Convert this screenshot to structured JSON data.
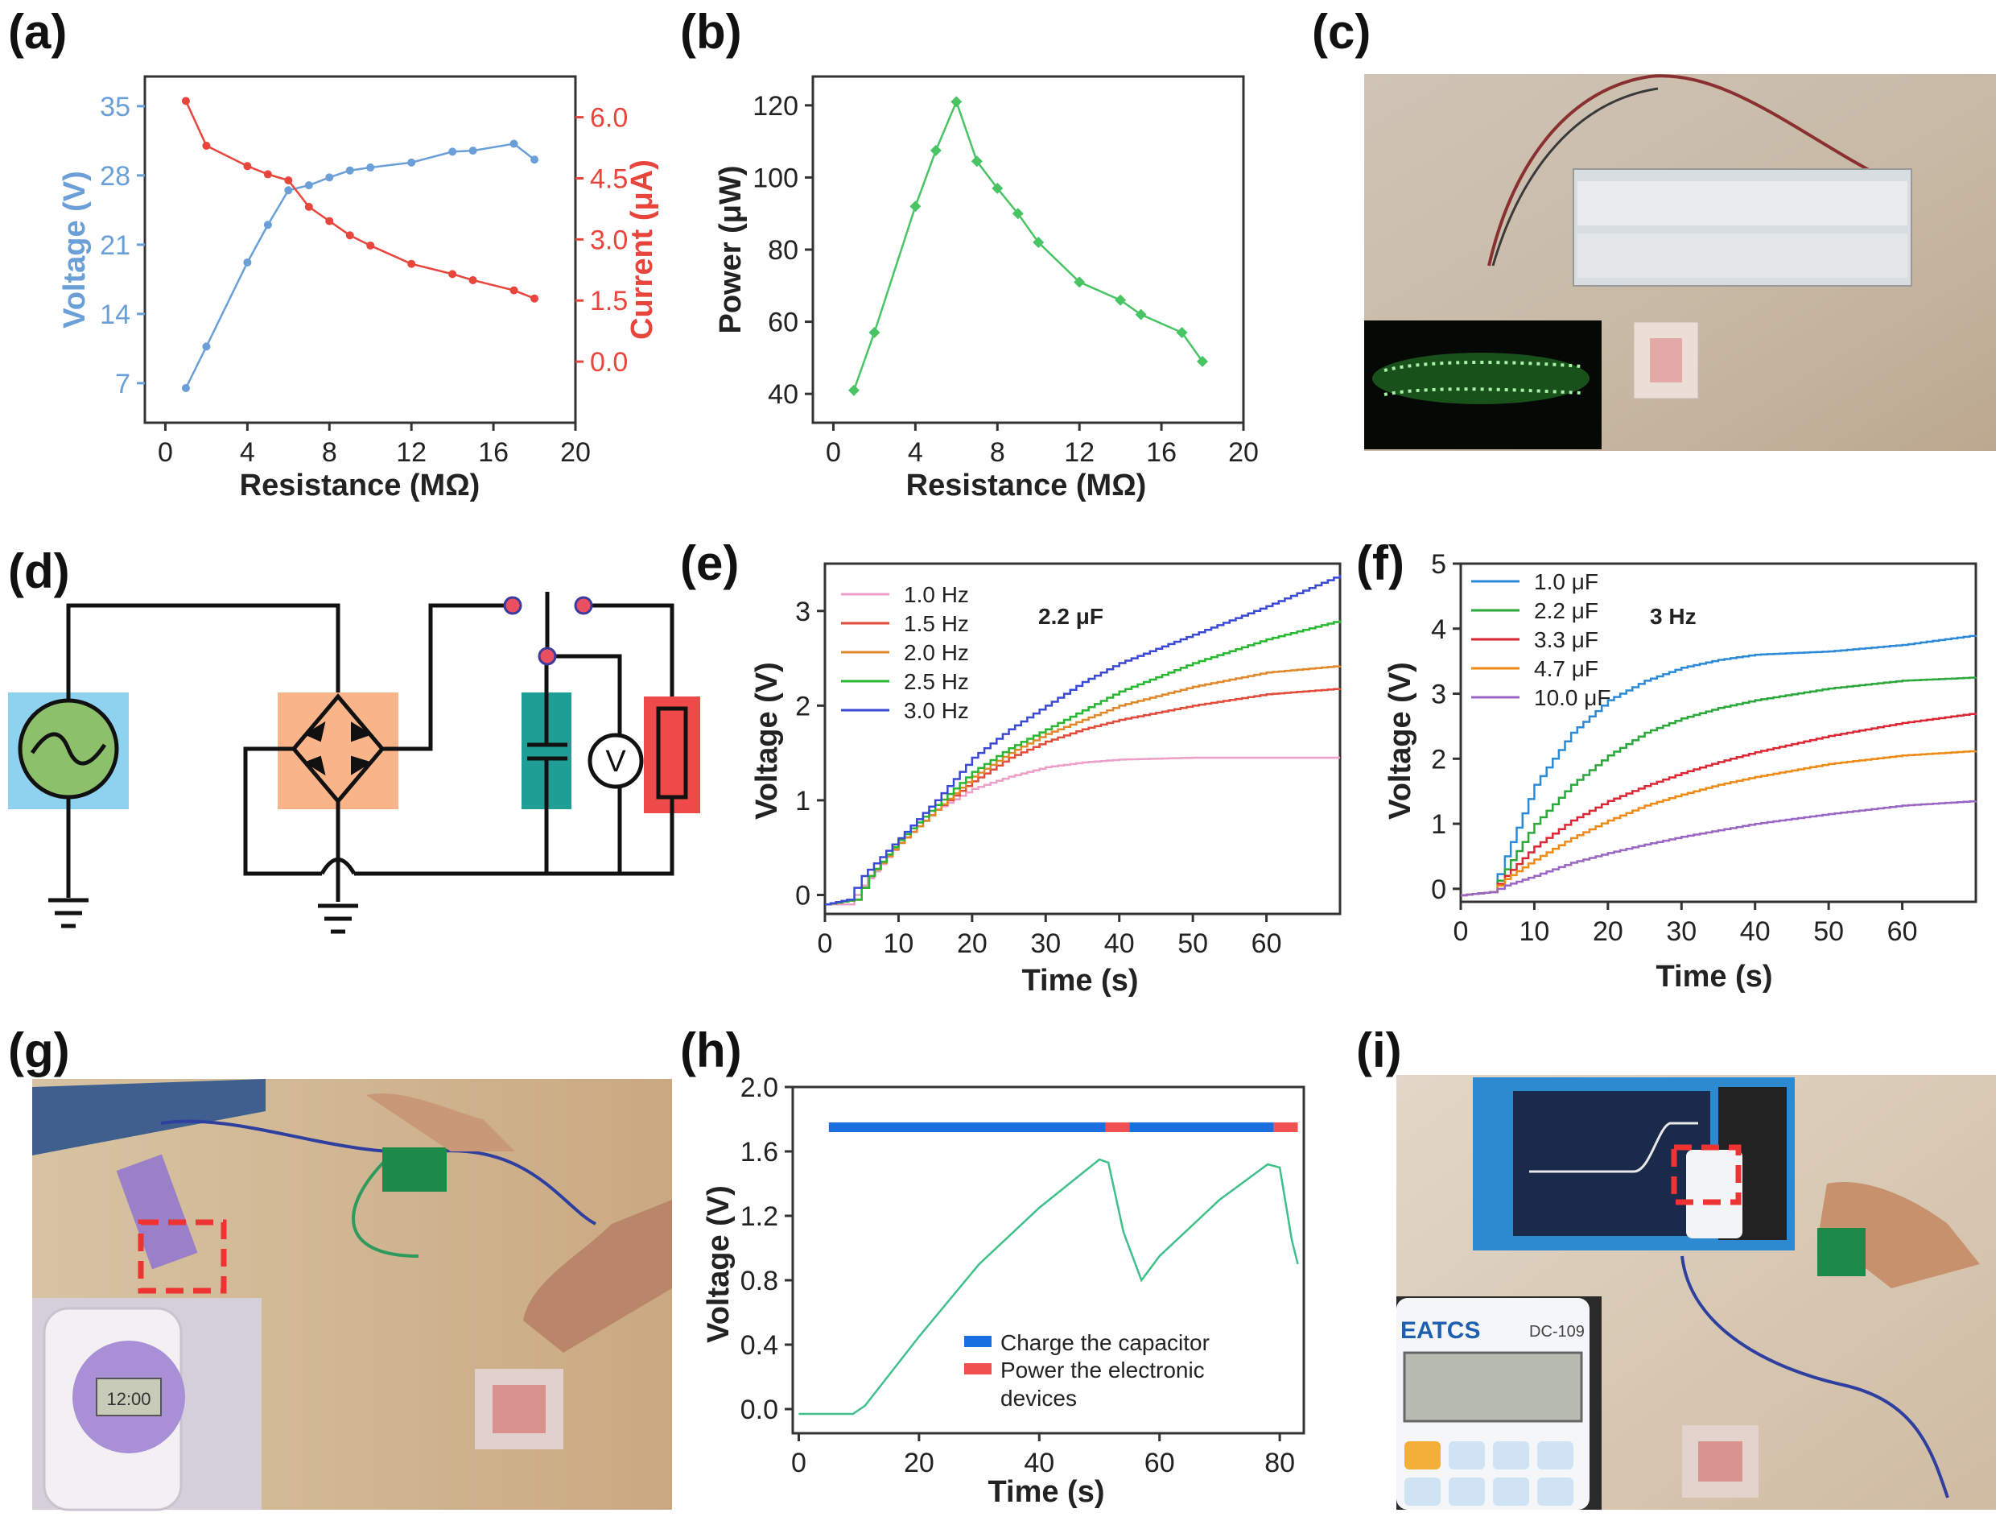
{
  "panel_labels": {
    "a": "(a)",
    "b": "(b)",
    "c": "(c)",
    "d": "(d)",
    "e": "(e)",
    "f": "(f)",
    "g": "(g)",
    "h": "(h)",
    "i": "(i)"
  },
  "circuit": {
    "voltmeter_symbol": "V"
  },
  "photo_g": {
    "watch_display": "12:00"
  },
  "photo_i": {
    "calculator_brand": "EATCS",
    "calculator_model": "DC-109"
  },
  "colors": {
    "blue": "#6a9fd8",
    "red": "#e8453c",
    "green": "#49c465",
    "series_e": [
      "#ee9fc8",
      "#e24a3a",
      "#e0882a",
      "#27b830",
      "#3a48d6"
    ],
    "series_f": [
      "#2b8ad8",
      "#2aa83a",
      "#dd2633",
      "#ef8a14",
      "#9a66c4"
    ],
    "charge": "#1a6fe0",
    "power": "#f05050"
  },
  "chart_data": [
    {
      "id": "a",
      "type": "line",
      "title": "",
      "xlabel": "Resistance (MΩ)",
      "ylabel": "Voltage (V)",
      "y2label": "Current (μA)",
      "xlim": [
        -1,
        20
      ],
      "ylim": [
        3,
        38
      ],
      "y2lim": [
        -1.5,
        7.0
      ],
      "xticks": [
        0,
        4,
        8,
        12,
        16,
        20
      ],
      "yticks": [
        7,
        14,
        21,
        28,
        35
      ],
      "y2ticks": [
        0.0,
        1.5,
        3.0,
        4.5,
        6.0
      ],
      "y2tick_labels": [
        "0.0",
        "1.5",
        "3.0",
        "4.5",
        "6.0"
      ],
      "x": [
        1,
        2,
        4,
        5,
        6,
        7,
        8,
        9,
        10,
        12,
        14,
        15,
        17,
        18
      ],
      "series": [
        {
          "name": "Voltage",
          "axis": "left",
          "values": [
            6.5,
            10.7,
            19.2,
            23.0,
            26.5,
            27.0,
            27.8,
            28.5,
            28.8,
            29.3,
            30.4,
            30.5,
            31.2,
            29.6
          ]
        },
        {
          "name": "Current",
          "axis": "right",
          "values": [
            6.4,
            5.3,
            4.8,
            4.6,
            4.45,
            3.8,
            3.45,
            3.1,
            2.85,
            2.4,
            2.15,
            2.0,
            1.75,
            1.55
          ]
        }
      ]
    },
    {
      "id": "b",
      "type": "line",
      "title": "",
      "xlabel": "Resistance (MΩ)",
      "ylabel": "Power (μW)",
      "xlim": [
        -1,
        20
      ],
      "ylim": [
        32,
        128
      ],
      "xticks": [
        0,
        4,
        8,
        12,
        16,
        20
      ],
      "yticks": [
        40,
        60,
        80,
        100,
        120
      ],
      "x": [
        1,
        2,
        4,
        5,
        6,
        7,
        8,
        9,
        10,
        12,
        14,
        15,
        17,
        18
      ],
      "series": [
        {
          "name": "Power",
          "values": [
            41,
            57,
            92,
            107.5,
            121,
            104.5,
            97,
            90,
            82,
            71,
            66,
            62,
            57,
            49
          ]
        }
      ]
    },
    {
      "id": "e",
      "type": "line",
      "title": "",
      "xlabel": "Time (s)",
      "ylabel": "Voltage (V)",
      "annotation": "2.2 μF",
      "xlim": [
        0,
        70
      ],
      "ylim": [
        -0.2,
        3.5
      ],
      "xticks": [
        0,
        10,
        20,
        30,
        40,
        50,
        60
      ],
      "yticks": [
        0,
        1,
        2,
        3
      ],
      "legend": [
        "1.0 Hz",
        "1.5 Hz",
        "2.0 Hz",
        "2.5 Hz",
        "3.0 Hz"
      ],
      "series": [
        {
          "name": "1.0 Hz",
          "points": [
            [
              0,
              -0.1
            ],
            [
              3,
              -0.1
            ],
            [
              5,
              0.1
            ],
            [
              10,
              0.55
            ],
            [
              15,
              0.9
            ],
            [
              20,
              1.12
            ],
            [
              25,
              1.25
            ],
            [
              30,
              1.35
            ],
            [
              35,
              1.4
            ],
            [
              40,
              1.43
            ],
            [
              50,
              1.45
            ],
            [
              60,
              1.45
            ],
            [
              70,
              1.45
            ]
          ]
        },
        {
          "name": "1.5 Hz",
          "points": [
            [
              0,
              -0.1
            ],
            [
              4,
              -0.05
            ],
            [
              6,
              0.2
            ],
            [
              10,
              0.55
            ],
            [
              15,
              0.9
            ],
            [
              20,
              1.2
            ],
            [
              25,
              1.45
            ],
            [
              30,
              1.62
            ],
            [
              35,
              1.75
            ],
            [
              40,
              1.85
            ],
            [
              50,
              2.0
            ],
            [
              60,
              2.12
            ],
            [
              70,
              2.18
            ]
          ]
        },
        {
          "name": "2.0 Hz",
          "points": [
            [
              0,
              -0.1
            ],
            [
              4,
              -0.05
            ],
            [
              6,
              0.2
            ],
            [
              10,
              0.55
            ],
            [
              15,
              0.9
            ],
            [
              20,
              1.25
            ],
            [
              25,
              1.5
            ],
            [
              30,
              1.7
            ],
            [
              35,
              1.85
            ],
            [
              40,
              2.0
            ],
            [
              50,
              2.2
            ],
            [
              60,
              2.35
            ],
            [
              70,
              2.42
            ]
          ]
        },
        {
          "name": "2.5 Hz",
          "points": [
            [
              0,
              -0.1
            ],
            [
              4,
              -0.05
            ],
            [
              6,
              0.2
            ],
            [
              10,
              0.58
            ],
            [
              15,
              0.95
            ],
            [
              20,
              1.3
            ],
            [
              25,
              1.55
            ],
            [
              30,
              1.75
            ],
            [
              35,
              1.95
            ],
            [
              40,
              2.15
            ],
            [
              50,
              2.45
            ],
            [
              60,
              2.7
            ],
            [
              70,
              2.9
            ]
          ]
        },
        {
          "name": "3.0 Hz",
          "points": [
            [
              0,
              -0.1
            ],
            [
              3,
              -0.05
            ],
            [
              5,
              0.2
            ],
            [
              10,
              0.6
            ],
            [
              15,
              1.0
            ],
            [
              20,
              1.45
            ],
            [
              25,
              1.75
            ],
            [
              30,
              2.0
            ],
            [
              35,
              2.25
            ],
            [
              40,
              2.45
            ],
            [
              50,
              2.75
            ],
            [
              60,
              3.05
            ],
            [
              70,
              3.38
            ]
          ]
        }
      ]
    },
    {
      "id": "f",
      "type": "line",
      "title": "",
      "xlabel": "Time (s)",
      "ylabel": "Voltage (V)",
      "annotation": "3 Hz",
      "xlim": [
        0,
        70
      ],
      "ylim": [
        -0.2,
        5.0
      ],
      "xticks": [
        0,
        10,
        20,
        30,
        40,
        50,
        60
      ],
      "yticks": [
        0,
        1,
        2,
        3,
        4,
        5
      ],
      "legend": [
        "1.0 μF",
        "2.2 μF",
        "3.3 μF",
        "4.7 μF",
        "10.0 μF"
      ],
      "series": [
        {
          "name": "1.0 μF",
          "points": [
            [
              0,
              -0.1
            ],
            [
              4,
              -0.05
            ],
            [
              6,
              0.5
            ],
            [
              10,
              1.6
            ],
            [
              15,
              2.4
            ],
            [
              20,
              2.9
            ],
            [
              25,
              3.2
            ],
            [
              30,
              3.4
            ],
            [
              35,
              3.52
            ],
            [
              40,
              3.6
            ],
            [
              50,
              3.65
            ],
            [
              60,
              3.75
            ],
            [
              70,
              3.9
            ]
          ]
        },
        {
          "name": "2.2 μF",
          "points": [
            [
              0,
              -0.1
            ],
            [
              4,
              -0.05
            ],
            [
              6,
              0.3
            ],
            [
              10,
              1.0
            ],
            [
              15,
              1.6
            ],
            [
              20,
              2.05
            ],
            [
              25,
              2.4
            ],
            [
              30,
              2.62
            ],
            [
              35,
              2.78
            ],
            [
              40,
              2.9
            ],
            [
              50,
              3.08
            ],
            [
              60,
              3.2
            ],
            [
              70,
              3.25
            ]
          ]
        },
        {
          "name": "3.3 μF",
          "points": [
            [
              0,
              -0.1
            ],
            [
              4,
              -0.05
            ],
            [
              6,
              0.2
            ],
            [
              10,
              0.65
            ],
            [
              15,
              1.05
            ],
            [
              20,
              1.35
            ],
            [
              25,
              1.58
            ],
            [
              30,
              1.78
            ],
            [
              35,
              1.95
            ],
            [
              40,
              2.1
            ],
            [
              50,
              2.35
            ],
            [
              60,
              2.55
            ],
            [
              70,
              2.7
            ]
          ]
        },
        {
          "name": "4.7 μF",
          "points": [
            [
              0,
              -0.1
            ],
            [
              4,
              -0.05
            ],
            [
              6,
              0.15
            ],
            [
              10,
              0.45
            ],
            [
              15,
              0.78
            ],
            [
              20,
              1.05
            ],
            [
              25,
              1.28
            ],
            [
              30,
              1.45
            ],
            [
              35,
              1.6
            ],
            [
              40,
              1.72
            ],
            [
              50,
              1.92
            ],
            [
              60,
              2.05
            ],
            [
              70,
              2.12
            ]
          ]
        },
        {
          "name": "10.0 μF",
          "points": [
            [
              0,
              -0.1
            ],
            [
              4,
              -0.05
            ],
            [
              6,
              0.05
            ],
            [
              10,
              0.2
            ],
            [
              15,
              0.4
            ],
            [
              20,
              0.55
            ],
            [
              25,
              0.68
            ],
            [
              30,
              0.8
            ],
            [
              35,
              0.9
            ],
            [
              40,
              1.0
            ],
            [
              50,
              1.15
            ],
            [
              60,
              1.28
            ],
            [
              70,
              1.35
            ]
          ]
        }
      ]
    },
    {
      "id": "h",
      "type": "line",
      "title": "",
      "xlabel": "Time (s)",
      "ylabel": "Voltage (V)",
      "xlim": [
        -1,
        84
      ],
      "ylim": [
        -0.15,
        2.0
      ],
      "xticks": [
        0,
        20,
        40,
        60,
        80
      ],
      "yticks": [
        0.0,
        0.4,
        0.8,
        1.2,
        1.6,
        2.0
      ],
      "ytick_labels": [
        "0.0",
        "0.4",
        "0.8",
        "1.2",
        "1.6",
        "2.0"
      ],
      "legend": [
        "Charge the capacitor",
        "Power the electronic",
        "devices"
      ],
      "phases": [
        {
          "kind": "charge",
          "start": 5,
          "end": 51
        },
        {
          "kind": "power",
          "start": 51,
          "end": 55
        },
        {
          "kind": "charge",
          "start": 55,
          "end": 79
        },
        {
          "kind": "power",
          "start": 79,
          "end": 83
        }
      ],
      "series": [
        {
          "name": "Voltage",
          "points": [
            [
              0,
              -0.03
            ],
            [
              9,
              -0.03
            ],
            [
              11,
              0.02
            ],
            [
              20,
              0.45
            ],
            [
              30,
              0.9
            ],
            [
              40,
              1.25
            ],
            [
              50,
              1.55
            ],
            [
              51.5,
              1.53
            ],
            [
              54,
              1.1
            ],
            [
              57,
              0.8
            ],
            [
              60,
              0.95
            ],
            [
              70,
              1.3
            ],
            [
              78,
              1.52
            ],
            [
              80,
              1.5
            ],
            [
              82,
              1.05
            ],
            [
              83,
              0.9
            ]
          ]
        }
      ]
    }
  ]
}
